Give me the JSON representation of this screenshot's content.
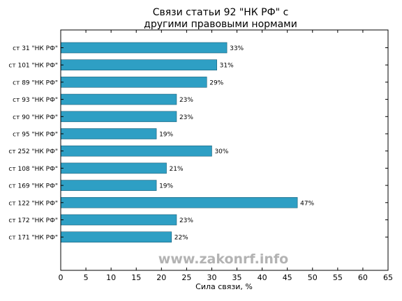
{
  "chart_data": {
    "type": "bar",
    "orientation": "horizontal",
    "title_lines": [
      "Связи статьи 92 \"НК РФ\" с",
      "другими правовыми нормами"
    ],
    "xlabel": "Сила связи, %",
    "ylabel": "",
    "xlim": [
      0,
      65
    ],
    "xticks": [
      0,
      5,
      10,
      15,
      20,
      25,
      30,
      35,
      40,
      45,
      50,
      55,
      60,
      65
    ],
    "grid": false,
    "categories": [
      "ст 31 \"НК РФ\"",
      "ст 101 \"НК РФ\"",
      "ст 89 \"НК РФ\"",
      "ст 93 \"НК РФ\"",
      "ст 90 \"НК РФ\"",
      "ст 95 \"НК РФ\"",
      "ст 252 \"НК РФ\"",
      "ст 108 \"НК РФ\"",
      "ст 169 \"НК РФ\"",
      "ст 122 \"НК РФ\"",
      "ст 172 \"НК РФ\"",
      "ст 171 \"НК РФ\""
    ],
    "values": [
      33,
      31,
      29,
      23,
      23,
      19,
      30,
      21,
      19,
      47,
      23,
      22
    ],
    "value_labels": [
      "33%",
      "31%",
      "29%",
      "23%",
      "23%",
      "19%",
      "30%",
      "21%",
      "19%",
      "47%",
      "23%",
      "22%"
    ],
    "bar_color": "#2e9fc4",
    "watermark": "www.zakonrf.info"
  }
}
